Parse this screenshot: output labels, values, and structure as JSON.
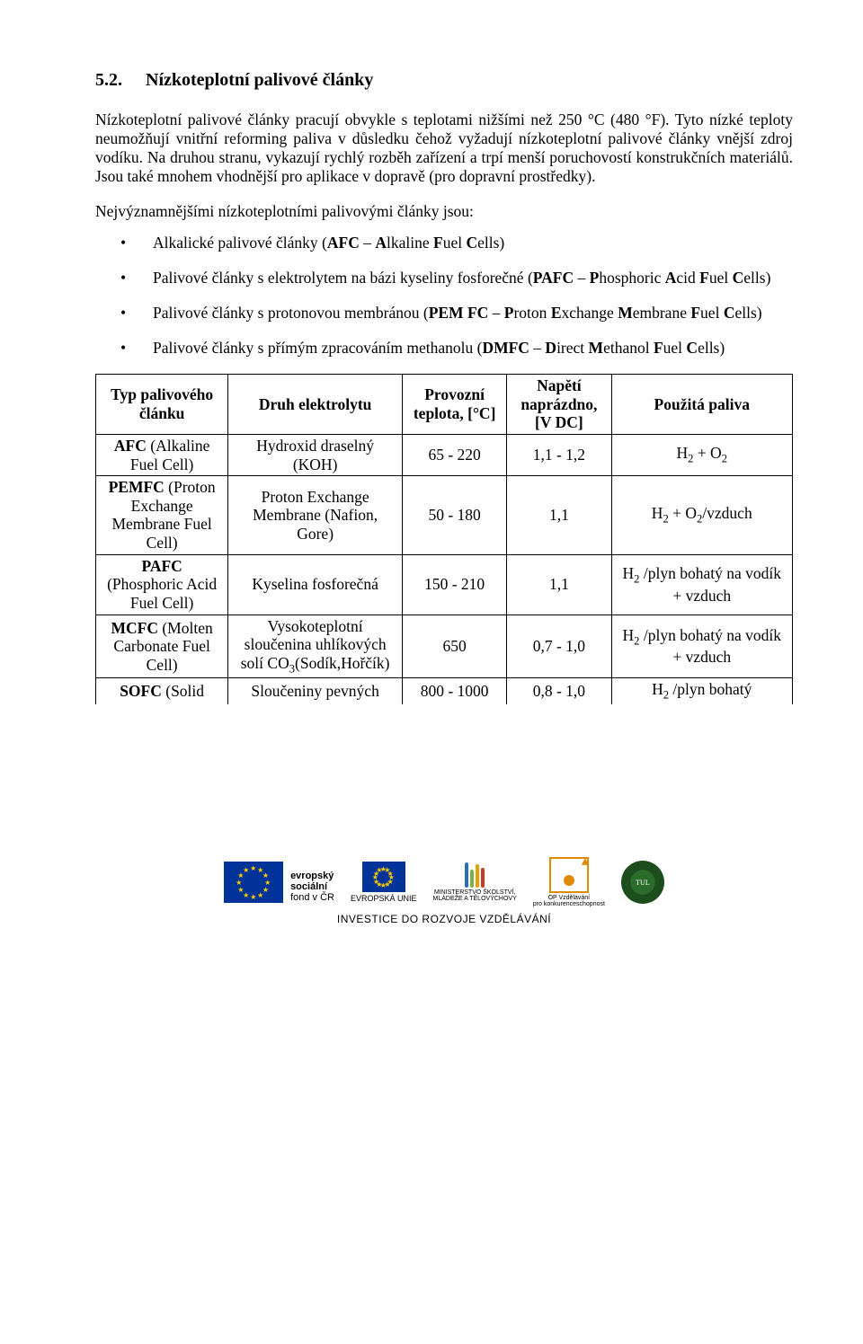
{
  "heading": {
    "number": "5.2.",
    "title": "Nízkoteplotní palivové články"
  },
  "para1": "Nízkoteplotní palivové články pracují obvykle s teplotami nižšími než 250 °C (480 °F). Tyto nízké teploty neumožňují vnitřní reforming paliva v důsledku čehož vyžadují nízkoteplotní palivové články vnější zdroj vodíku. Na druhou stranu, vykazují rychlý rozběh zařízení a trpí menší poruchovostí konstrukčních materiálů. Jsou také mnohem vhodnější pro aplikace v dopravě (pro dopravní prostředky).",
  "intro": "Nejvýznamnějšími nízkoteplotními palivovými články jsou:",
  "bullets": [
    "Alkalické palivové články (<b>AFC</b> – <b>A</b>lkaline <b>F</b>uel <b>C</b>ells)",
    "Palivové články s elektrolytem na bázi kyseliny fosforečné (<b>PAFC</b> – <b>P</b>hosphoric <b>A</b>cid <b>F</b>uel <b>C</b>ells)",
    "Palivové články s protonovou membránou (<b>PEM FC</b> – <b>P</b>roton <b>E</b>xchange <b>M</b>embrane <b>F</b>uel <b>C</b>ells)",
    "Palivové články s přímým zpracováním methanolu (<b>DMFC</b> – <b>D</b>irect <b>M</b>ethanol <b>F</b>uel <b>C</b>ells)"
  ],
  "table": {
    "col_widths": [
      "19%",
      "25%",
      "15%",
      "15%",
      "26%"
    ],
    "headers": [
      "Typ palivového článku",
      "Druh elektrolytu",
      "Provozní teplota, [°C]",
      "Napětí naprázdno, [V  DC]",
      "Použitá paliva"
    ],
    "rows": [
      {
        "type": "<b>AFC</b> (Alkaline Fuel Cell)",
        "electrolyte": "Hydroxid draselný (KOH)",
        "temp": "65 - 220",
        "volt": "1,1 - 1,2",
        "fuel": "H<span class=\"sub\">2</span> + O<span class=\"sub\">2</span>"
      },
      {
        "type": "<b>PEMFC</b> (Proton Exchange Membrane Fuel Cell)",
        "electrolyte": "Proton Exchange Membrane (Nafion, Gore)",
        "temp": "50 - 180",
        "volt": "1,1",
        "fuel": "H<span class=\"sub\">2</span> + O<span class=\"sub\">2</span>/vzduch"
      },
      {
        "type": "<b>PAFC</b> (Phosphoric Acid Fuel Cell)",
        "electrolyte": "Kyselina fosforečná",
        "temp": "150 - 210",
        "volt": "1,1",
        "fuel": "H<span class=\"sub\">2</span> /plyn bohatý na vodík<br>+ vzduch"
      },
      {
        "type": "<b>MCFC</b> (Molten Carbonate Fuel Cell)",
        "electrolyte": "Vysokoteplotní sloučenina uhlíkových solí CO<span class=\"sub\">3</span>(Sodík,Hořčík)",
        "temp": "650",
        "volt": "0,7 - 1,0",
        "fuel": "H<span class=\"sub\">2</span> /plyn bohatý na vodík<br>+ vzduch"
      },
      {
        "type": "<b>SOFC</b> (Solid",
        "electrolyte": "Sloučeniny pevných",
        "temp": "800 - 1000",
        "volt": "0,8 - 1,0",
        "fuel": "H<span class=\"sub\">2</span> /plyn bohatý",
        "bottom_open": true
      }
    ]
  },
  "footer": {
    "esf_lines": [
      "evropský",
      "sociální",
      "fond v ČR"
    ],
    "eu_label": "EVROPSKÁ UNIE",
    "msmt_lines": [
      "MINISTERSTVO ŠKOLSTVÍ,",
      "MLÁDEŽE A TĚLOVÝCHOVY"
    ],
    "msmt_colors": [
      "#2a6fb5",
      "#7db04a",
      "#e2a100",
      "#c63c2b"
    ],
    "msmt_heights": [
      28,
      20,
      26,
      22
    ],
    "opvk_lines": [
      "OP Vzdělávání",
      "pro konkurenceschopnost"
    ],
    "tagline": "INVESTICE DO ROZVOJE VZDĚLÁVÁNÍ"
  }
}
